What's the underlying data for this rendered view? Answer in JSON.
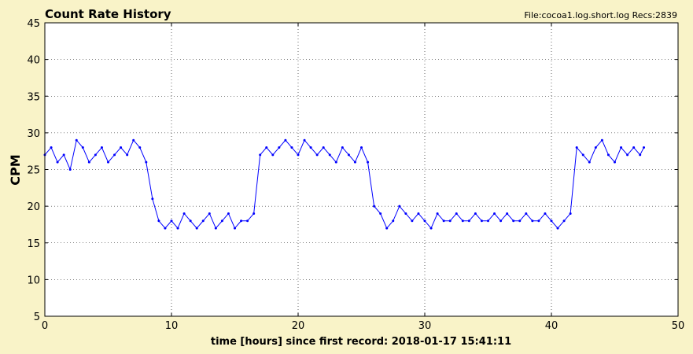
{
  "window": {
    "title": "Count Rate History",
    "info": "File:cocoa1.log.short.log  Recs:2839"
  },
  "colors": {
    "background": "#f9f3c8",
    "plot_background": "#ffffff",
    "series": "#0000ff"
  },
  "chart_data": {
    "type": "line",
    "title": "Count Rate History",
    "xlabel": "time [hours] since first record: 2018-01-17 15:41:11",
    "ylabel": "CPM",
    "xlim": [
      0,
      50
    ],
    "ylim": [
      5,
      45
    ],
    "xticks": [
      0,
      10,
      20,
      30,
      40,
      50
    ],
    "yticks": [
      5,
      10,
      15,
      20,
      25,
      30,
      35,
      40,
      45
    ],
    "grid": true,
    "record_count": 2839,
    "series": [
      {
        "color": "#0000ff",
        "marker": "dot",
        "x": [
          0,
          0.5,
          1,
          1.5,
          2,
          2.5,
          3,
          3.5,
          4,
          4.5,
          5,
          5.5,
          6,
          6.5,
          7,
          7.5,
          8,
          8.5,
          9,
          9.5,
          10,
          10.5,
          11,
          11.5,
          12,
          12.5,
          13,
          13.5,
          14,
          14.5,
          15,
          15.5,
          16,
          16.5,
          17,
          17.5,
          18,
          18.5,
          19,
          19.5,
          20,
          20.5,
          21,
          21.5,
          22,
          22.5,
          23,
          23.5,
          24,
          24.5,
          25,
          25.5,
          26,
          26.5,
          27,
          27.5,
          28,
          28.5,
          29,
          29.5,
          30,
          30.5,
          31,
          31.5,
          32,
          32.5,
          33,
          33.5,
          34,
          34.5,
          35,
          35.5,
          36,
          36.5,
          37,
          37.5,
          38,
          38.5,
          39,
          39.5,
          40,
          40.5,
          41,
          41.5,
          42,
          42.5,
          43,
          43.5,
          44,
          44.5,
          45,
          45.5,
          46,
          46.5,
          47,
          47.3
        ],
        "y": [
          27,
          28,
          26,
          27,
          25,
          29,
          28,
          26,
          27,
          28,
          26,
          27,
          28,
          27,
          29,
          28,
          26,
          21,
          18,
          17,
          18,
          17,
          19,
          18,
          17,
          18,
          19,
          17,
          18,
          19,
          17,
          18,
          18,
          19,
          27,
          28,
          27,
          28,
          29,
          28,
          27,
          29,
          28,
          27,
          28,
          27,
          26,
          28,
          27,
          26,
          28,
          26,
          20,
          19,
          17,
          18,
          20,
          19,
          18,
          19,
          18,
          17,
          19,
          18,
          18,
          19,
          18,
          18,
          19,
          18,
          18,
          19,
          18,
          19,
          18,
          18,
          19,
          18,
          18,
          19,
          18,
          17,
          18,
          19,
          28,
          27,
          26,
          28,
          29,
          27,
          26,
          28,
          27,
          28,
          27,
          28
        ]
      }
    ]
  }
}
